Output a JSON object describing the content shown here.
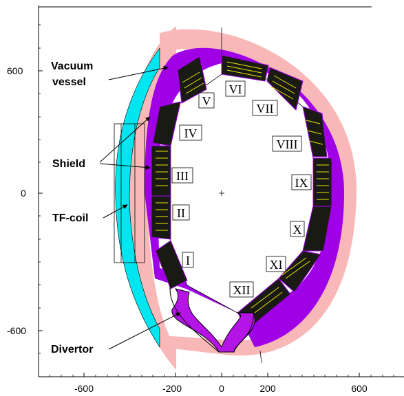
{
  "x_ticks": [
    "-600",
    "-200",
    "0",
    "200",
    "600"
  ],
  "y_ticks": [
    "600",
    "0",
    "-600"
  ],
  "labels": {
    "vacuum_vessel_1": "Vacuum",
    "vacuum_vessel_2": "vessel",
    "shield": "Shield",
    "tf_coil": "TF-coil",
    "divertor": "Divertor"
  },
  "modules": [
    "I",
    "II",
    "III",
    "IV",
    "V",
    "VI",
    "VII",
    "VIII",
    "IX",
    "X",
    "XI",
    "XII"
  ],
  "colors": {
    "shield": "#f9b8b8",
    "tf_coil": "#00e6f0",
    "blanket_ring": "#a000e6",
    "divertor": "#b414e6",
    "module_box": "#1a1a14",
    "coil_lines": "#e6e600"
  }
}
